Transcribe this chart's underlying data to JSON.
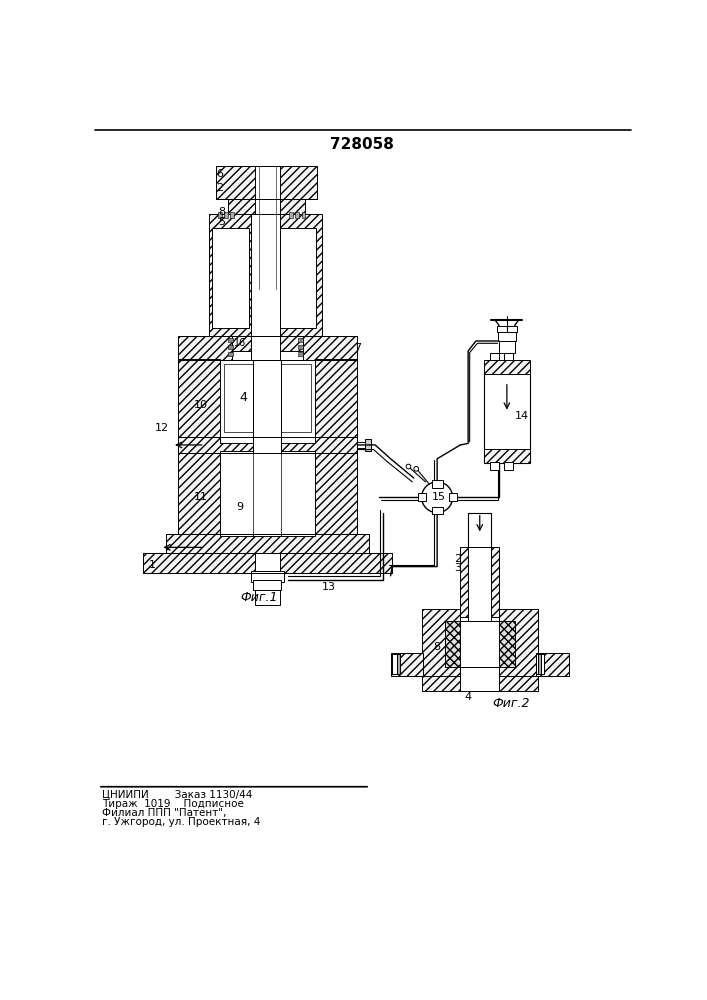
{
  "title": "728058",
  "fig1_label": "Фиг.1",
  "fig2_label": "Фиг.2",
  "footer_line1": "ЦНИИПИ        Заказ 1130/44",
  "footer_line2": "Тираж  1019    Подписное",
  "footer_line3": "Филиал ППП \"Патент\",",
  "footer_line4": "г. Ужгород, ул. Проектная, 4",
  "bg_color": "#ffffff"
}
